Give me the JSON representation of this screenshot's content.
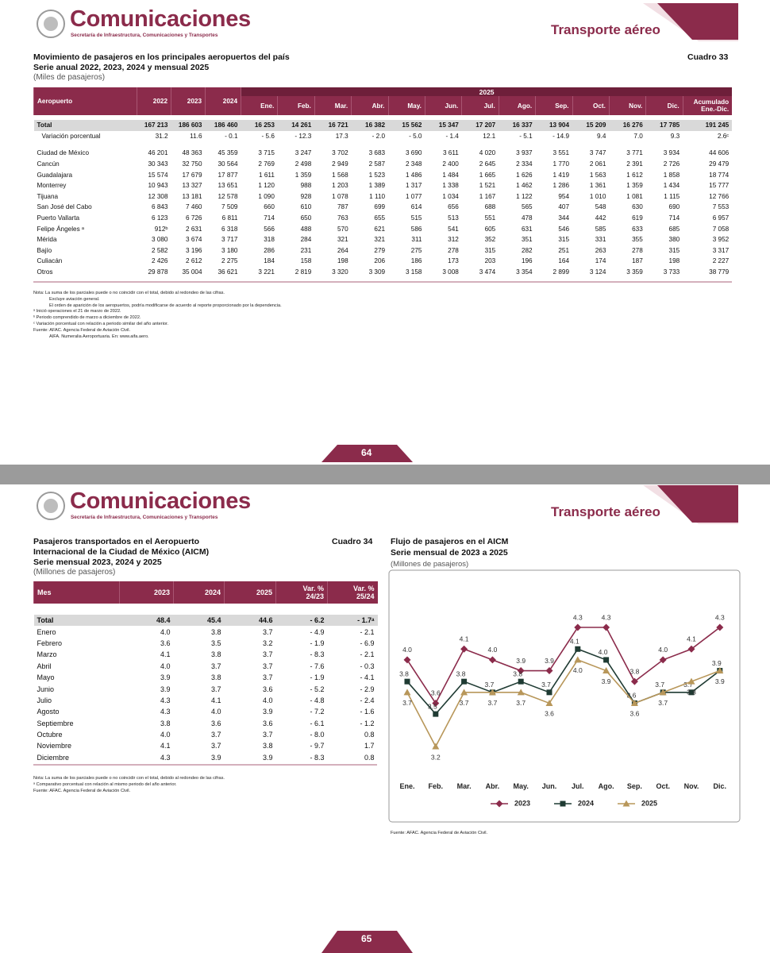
{
  "pages": [
    {
      "header": {
        "brand": "Comunicaciones",
        "agency": "Secretaría de Infraestructura, Comunicaciones y Transportes",
        "section": "Transporte aéreo"
      },
      "table": {
        "title": [
          "Movimiento de pasajeros en los principales aeropuertos del país",
          "Serie anual 2022, 2023, 2024 y mensual 2025"
        ],
        "unit": "(Miles de pasajeros)",
        "number": "Cuadro 33",
        "column_group": "2025",
        "columns": [
          "Aeropuerto",
          "2022",
          "2023",
          "2024",
          "Ene.",
          "Feb.",
          "Mar.",
          "Abr.",
          "May.",
          "Jun.",
          "Jul.",
          "Ago.",
          "Sep.",
          "Oct.",
          "Nov.",
          "Dic.",
          "Acumulado Ene.-Dic."
        ],
        "rows": [
          [
            "Total",
            "167 213",
            "186 603",
            "186 460",
            "16 253",
            "14 261",
            "16 721",
            "16 382",
            "15 562",
            "15 347",
            "17 207",
            "16 337",
            "13 904",
            "15 209",
            "16 276",
            "17 785",
            "191 245"
          ],
          [
            "Variación porcentual",
            "31.2",
            "11.6",
            "- 0.1",
            "- 5.6",
            "- 12.3",
            "17.3",
            "- 2.0",
            "- 5.0",
            "- 1.4",
            "12.1",
            "- 5.1",
            "- 14.9",
            "9.4",
            "7.0",
            "9.3",
            "2.6ᶜ"
          ],
          [
            "Ciudad de México",
            "46 201",
            "48 363",
            "45 359",
            "3 715",
            "3 247",
            "3 702",
            "3 683",
            "3 690",
            "3 611",
            "4 020",
            "3 937",
            "3 551",
            "3 747",
            "3 771",
            "3 934",
            "44 606"
          ],
          [
            "Cancún",
            "30 343",
            "32 750",
            "30 564",
            "2 769",
            "2 498",
            "2 949",
            "2 587",
            "2 348",
            "2 400",
            "2 645",
            "2 334",
            "1 770",
            "2 061",
            "2 391",
            "2 726",
            "29 479"
          ],
          [
            "Guadalajara",
            "15 574",
            "17 679",
            "17 877",
            "1 611",
            "1 359",
            "1 568",
            "1 523",
            "1 486",
            "1 484",
            "1 665",
            "1 626",
            "1 419",
            "1 563",
            "1 612",
            "1 858",
            "18 774"
          ],
          [
            "Monterrey",
            "10 943",
            "13 327",
            "13 651",
            "1 120",
            "988",
            "1 203",
            "1 389",
            "1 317",
            "1 338",
            "1 521",
            "1 462",
            "1 286",
            "1 361",
            "1 359",
            "1 434",
            "15 777"
          ],
          [
            "Tijuana",
            "12 308",
            "13 181",
            "12 578",
            "1 090",
            "928",
            "1 078",
            "1 110",
            "1 077",
            "1 034",
            "1 167",
            "1 122",
            "954",
            "1 010",
            "1 081",
            "1 115",
            "12 766"
          ],
          [
            "San José del Cabo",
            "6 843",
            "7 460",
            "7 509",
            "660",
            "610",
            "787",
            "699",
            "614",
            "656",
            "688",
            "565",
            "407",
            "548",
            "630",
            "690",
            "7 553"
          ],
          [
            "Puerto Vallarta",
            "6 123",
            "6 726",
            "6 811",
            "714",
            "650",
            "763",
            "655",
            "515",
            "513",
            "551",
            "478",
            "344",
            "442",
            "619",
            "714",
            "6 957"
          ],
          [
            "Felipe Ángeles ᵃ",
            "912ᵇ",
            "2 631",
            "6 318",
            "566",
            "488",
            "570",
            "621",
            "586",
            "541",
            "605",
            "631",
            "546",
            "585",
            "633",
            "685",
            "7 058"
          ],
          [
            "Mérida",
            "3 080",
            "3 674",
            "3 717",
            "318",
            "284",
            "321",
            "321",
            "311",
            "312",
            "352",
            "351",
            "315",
            "331",
            "355",
            "380",
            "3 952"
          ],
          [
            "Bajío",
            "2 582",
            "3 196",
            "3 180",
            "286",
            "231",
            "264",
            "279",
            "275",
            "278",
            "315",
            "282",
            "251",
            "263",
            "278",
            "315",
            "3 317"
          ],
          [
            "Culiacán",
            "2 426",
            "2 612",
            "2 275",
            "184",
            "158",
            "198",
            "206",
            "186",
            "173",
            "203",
            "196",
            "164",
            "174",
            "187",
            "198",
            "2 227"
          ],
          [
            "Otros",
            "29 878",
            "35 004",
            "36 621",
            "3 221",
            "2 819",
            "3 320",
            "3 309",
            "3 158",
            "3 008",
            "3 474",
            "3 354",
            "2 899",
            "3 124",
            "3 359",
            "3 733",
            "38 779"
          ]
        ]
      },
      "notes": [
        "Nota: La suma de los parciales puede o no coincidir con el total, debido al redondeo de las cifras.",
        "Excluye aviación general.",
        "El orden de aparición de los aeropuertos, podría modificarse de acuerdo al reporte proporcionado por la dependencia.",
        "ᵃ Inició operaciones el 21 de marzo de 2022.",
        "ᵇ Periodo comprendido de marzo a diciembre de 2022.",
        "ᶜ Variación porcentual con relación a periodo similar del año anterior.",
        "Fuente: AFAC. Agencia Federal de Aviación Civil.",
        "AIFA. Numeralia Aeroportuaria. En: www.aifa.aero."
      ],
      "page_number": "64"
    },
    {
      "header": {
        "brand": "Comunicaciones",
        "agency": "Secretaría de Infraestructura, Comunicaciones y Transportes",
        "section": "Transporte aéreo"
      },
      "table": {
        "title": [
          "Pasajeros transportados en el Aeropuerto",
          "Internacional de la Ciudad de México (AICM)",
          "Serie mensual 2023, 2024 y 2025"
        ],
        "unit": "(Millones de pasajeros)",
        "number": "Cuadro 34",
        "columns": [
          "Mes",
          "2023",
          "2024",
          "2025",
          "Var. % 24/23",
          "Var. % 25/24"
        ],
        "rows": [
          [
            "Total",
            "48.4",
            "45.4",
            "44.6",
            "- 6.2",
            "- 1.7ᵃ"
          ],
          [
            "Enero",
            "4.0",
            "3.8",
            "3.7",
            "- 4.9",
            "- 2.1"
          ],
          [
            "Febrero",
            "3.6",
            "3.5",
            "3.2",
            "- 1.9",
            "- 6.9"
          ],
          [
            "Marzo",
            "4.1",
            "3.8",
            "3.7",
            "- 8.3",
            "- 2.1"
          ],
          [
            "Abril",
            "4.0",
            "3.7",
            "3.7",
            "- 7.6",
            "- 0.3"
          ],
          [
            "Mayo",
            "3.9",
            "3.8",
            "3.7",
            "- 1.9",
            "- 4.1"
          ],
          [
            "Junio",
            "3.9",
            "3.7",
            "3.6",
            "- 5.2",
            "- 2.9"
          ],
          [
            "Julio",
            "4.3",
            "4.1",
            "4.0",
            "- 4.8",
            "- 2.4"
          ],
          [
            "Agosto",
            "4.3",
            "4.0",
            "3.9",
            "- 7.2",
            "- 1.6"
          ],
          [
            "Septiembre",
            "3.8",
            "3.6",
            "3.6",
            "- 6.1",
            "- 1.2"
          ],
          [
            "Octubre",
            "4.0",
            "3.7",
            "3.7",
            "- 8.0",
            "0.8"
          ],
          [
            "Noviembre",
            "4.1",
            "3.7",
            "3.8",
            "- 9.7",
            "1.7"
          ],
          [
            "Diciembre",
            "4.3",
            "3.9",
            "3.9",
            "- 8.3",
            "0.8"
          ]
        ]
      },
      "notes": [
        "Nota: La suma de los parciales puede o no coincidir con el total, debido al redondeo de las cifras.",
        "ᵃ Comparativo porcentual con relación al mismo periodo del año anterior.",
        "Fuente: AFAC. Agencia Federal de Aviación Civil."
      ],
      "source": "Fuente: AFAC. Agencia Federal de Aviación Civil.",
      "page_number": "65"
    }
  ],
  "chart_data": {
    "type": "line",
    "title": [
      "Flujo de pasajeros en el AICM",
      "Serie mensual de 2023  a 2025"
    ],
    "subtitle": "(Millones de pasajeros)",
    "categories": [
      "Ene.",
      "Feb.",
      "Mar.",
      "Abr.",
      "May.",
      "Jun.",
      "Jul.",
      "Ago.",
      "Sep.",
      "Oct.",
      "Nov.",
      "Dic."
    ],
    "series": [
      {
        "name": "2023",
        "color": "#8b2b4b",
        "marker": "diamond",
        "values": [
          4.0,
          3.6,
          4.1,
          4.0,
          3.9,
          3.9,
          4.3,
          4.3,
          3.8,
          4.0,
          4.1,
          4.3
        ],
        "value_labels": [
          "4.0",
          "3.6",
          "4.1",
          "4.0",
          "3.9",
          "3.9",
          "4.3",
          "4.3",
          "3.8",
          "4.0",
          "4.1",
          "4.3"
        ]
      },
      {
        "name": "2024",
        "color": "#1f3b33",
        "marker": "square",
        "values": [
          3.8,
          3.5,
          3.8,
          3.7,
          3.8,
          3.7,
          4.1,
          4.0,
          3.6,
          3.7,
          3.7,
          3.9
        ],
        "value_labels": [
          "3.8",
          "3.5",
          "3.8",
          "3.7",
          "3.8",
          "3.7",
          "4.1",
          "4.0",
          "3.6",
          "3.7",
          "3.7",
          "3.9"
        ]
      },
      {
        "name": "2025",
        "color": "#b8975a",
        "marker": "triangle",
        "values": [
          3.7,
          3.2,
          3.7,
          3.7,
          3.7,
          3.6,
          4.0,
          3.9,
          3.6,
          3.7,
          3.8,
          3.9
        ],
        "value_labels": [
          "3.7",
          "3.2",
          "3.7",
          "3.7",
          "3.7",
          "3.6",
          "4.0",
          "3.9",
          "3.6",
          "3.7",
          "3.8",
          "3.9"
        ]
      }
    ],
    "legend": "bottom"
  }
}
